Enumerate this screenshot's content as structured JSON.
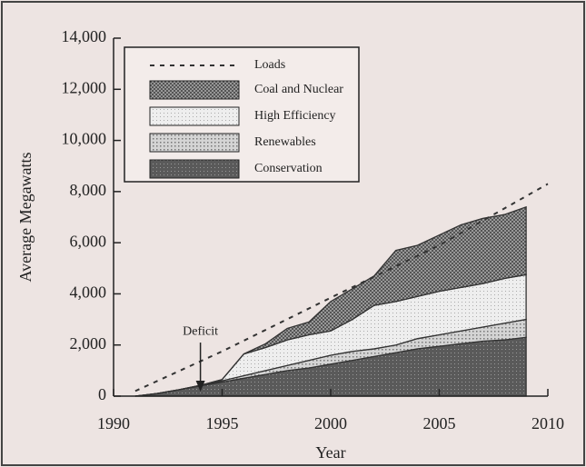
{
  "chart_data": {
    "type": "stacked_area",
    "y_label": "Average Megawatts",
    "x_label": "Year",
    "x": [
      1991,
      1992,
      1993,
      1994,
      1995,
      1996,
      1997,
      1998,
      1999,
      2000,
      2001,
      2002,
      2003,
      2004,
      2005,
      2006,
      2007,
      2008,
      2009
    ],
    "series": [
      {
        "name": "Conservation",
        "color": "#5a5a5a",
        "values": [
          0,
          100,
          250,
          400,
          550,
          700,
          850,
          1000,
          1100,
          1250,
          1400,
          1550,
          1700,
          1850,
          1950,
          2050,
          2150,
          2200,
          2300
        ]
      },
      {
        "name": "Renewables",
        "color": "#b8b8b8",
        "values": [
          0,
          0,
          0,
          20,
          50,
          100,
          150,
          200,
          300,
          350,
          350,
          300,
          300,
          400,
          450,
          500,
          550,
          650,
          700
        ]
      },
      {
        "name": "High Efficiency",
        "color": "#dddddd",
        "values": [
          0,
          0,
          0,
          0,
          50,
          850,
          900,
          1000,
          1000,
          950,
          1250,
          1700,
          1700,
          1650,
          1700,
          1700,
          1700,
          1750,
          1750
        ]
      },
      {
        "name": "Coal and Nuclear",
        "color": "#8a8a8a",
        "values": [
          0,
          0,
          0,
          0,
          0,
          0,
          150,
          450,
          500,
          1150,
          1200,
          1150,
          2000,
          2000,
          2200,
          2450,
          2550,
          2500,
          2650
        ]
      }
    ],
    "line": {
      "name": "Loads",
      "color": "#333333",
      "x": [
        1991,
        1995,
        2000,
        2005,
        2010
      ],
      "values": [
        200,
        1750,
        3850,
        5900,
        8300
      ]
    },
    "annotation": {
      "text": "Deficit",
      "x": 1994,
      "y": 1100
    },
    "xlim": [
      1990,
      2010
    ],
    "xticks": [
      1990,
      1995,
      2000,
      2005,
      2010
    ],
    "ylim": [
      0,
      14000
    ],
    "yticks": [
      0,
      {
        "value": 2000,
        "label": "2,000"
      },
      {
        "value": 4000,
        "label": "4,000"
      },
      {
        "value": 6000,
        "label": "6,000"
      },
      {
        "value": 8000,
        "label": "8,000"
      },
      {
        "value": 10000,
        "label": "10,000"
      },
      {
        "value": 12000,
        "label": "12,000"
      },
      {
        "value": 14000,
        "label": "14,000"
      }
    ],
    "legend": "upper left"
  }
}
